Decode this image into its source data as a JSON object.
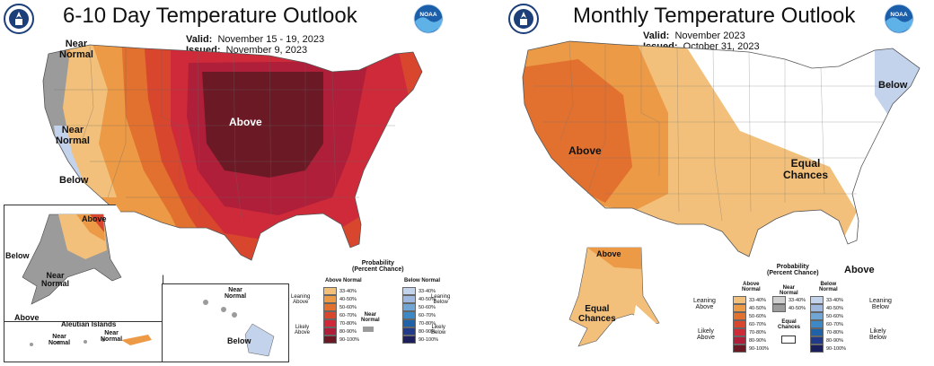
{
  "left": {
    "title": "6-10 Day Temperature Outlook",
    "valid_label": "Valid:",
    "valid_value": "November 15 - 19, 2023",
    "issued_label": "Issued:",
    "issued_value": "November 9, 2023",
    "labels": {
      "near_normal_nw": [
        "Near",
        "Normal"
      ],
      "near_normal_ca": [
        "Near",
        "Normal"
      ],
      "below_ca": "Below",
      "above_center": "Above",
      "ak_above": "Above",
      "ak_below": "Below",
      "ak_near_normal": [
        "Near",
        "Normal"
      ],
      "ak_above_sw": "Above",
      "aleutian_title": "Aleutian Islands",
      "aleutian_near1": [
        "Near",
        "Normal"
      ],
      "aleutian_near2": [
        "Near",
        "Normal"
      ],
      "hi_near": [
        "Near",
        "Normal"
      ],
      "hi_below": "Below"
    },
    "legend": {
      "title": [
        "Probability",
        "(Percent Chance)"
      ],
      "above_header": "Above Normal",
      "below_header": "Below Normal",
      "near_label": [
        "Near",
        "Normal"
      ],
      "leaning_above": [
        "Leaning",
        "Above"
      ],
      "likely_above": [
        "Likely",
        "Above"
      ],
      "leaning_below": [
        "Leaning",
        "Below"
      ],
      "likely_below": [
        "Likely",
        "Below"
      ],
      "ranges": [
        "33-40%",
        "40-50%",
        "50-60%",
        "60-70%",
        "70-80%",
        "80-90%",
        "90-100%"
      ]
    }
  },
  "right": {
    "title": "Monthly Temperature Outlook",
    "valid_label": "Valid:",
    "valid_value": "November 2023",
    "issued_label": "Issued:",
    "issued_value": "October 31, 2023",
    "labels": {
      "below_ne": "Below",
      "above_west": "Above",
      "equal_chances": [
        "Equal",
        "Chances"
      ],
      "ak_above": "Above",
      "ak_equal": [
        "Equal",
        "Chances"
      ],
      "fl_above": "Above"
    },
    "legend": {
      "title": [
        "Probability",
        "(Percent Chance)"
      ],
      "above_header": [
        "Above",
        "Normal"
      ],
      "near_header": [
        "Near",
        "Normal"
      ],
      "below_header": [
        "Below",
        "Normal"
      ],
      "leaning_above": [
        "Leaning",
        "Above"
      ],
      "likely_above": [
        "Likely",
        "Above"
      ],
      "leaning_below": [
        "Leaning",
        "Below"
      ],
      "likely_below": [
        "Likely",
        "Below"
      ],
      "equal_chances": [
        "Equal",
        "Chances"
      ],
      "ranges": [
        "33-40%",
        "40-50%",
        "50-60%",
        "60-70%",
        "70-80%",
        "80-90%",
        "90-100%"
      ]
    }
  },
  "logos": {
    "left_seal": "commerce-seal-icon",
    "left_noaa": "NOAA",
    "right_seal": "commerce-seal-icon",
    "right_noaa": "NOAA"
  },
  "colors": {
    "above_33": "#f2c07a",
    "above_40": "#ec9a45",
    "above_50": "#e2702f",
    "above_60": "#d8462e",
    "above_70": "#cf2a3a",
    "above_80": "#b01f3a",
    "above_90": "#6b1a25",
    "near": "#9b9b9b",
    "below_33": "#c4d3ec",
    "below_40": "#9fb8e0",
    "below_50": "#6fa6d6",
    "below_60": "#3f88c6",
    "below_70": "#1f62a8",
    "below_80": "#213a8a",
    "below_90": "#1b1f5e"
  }
}
